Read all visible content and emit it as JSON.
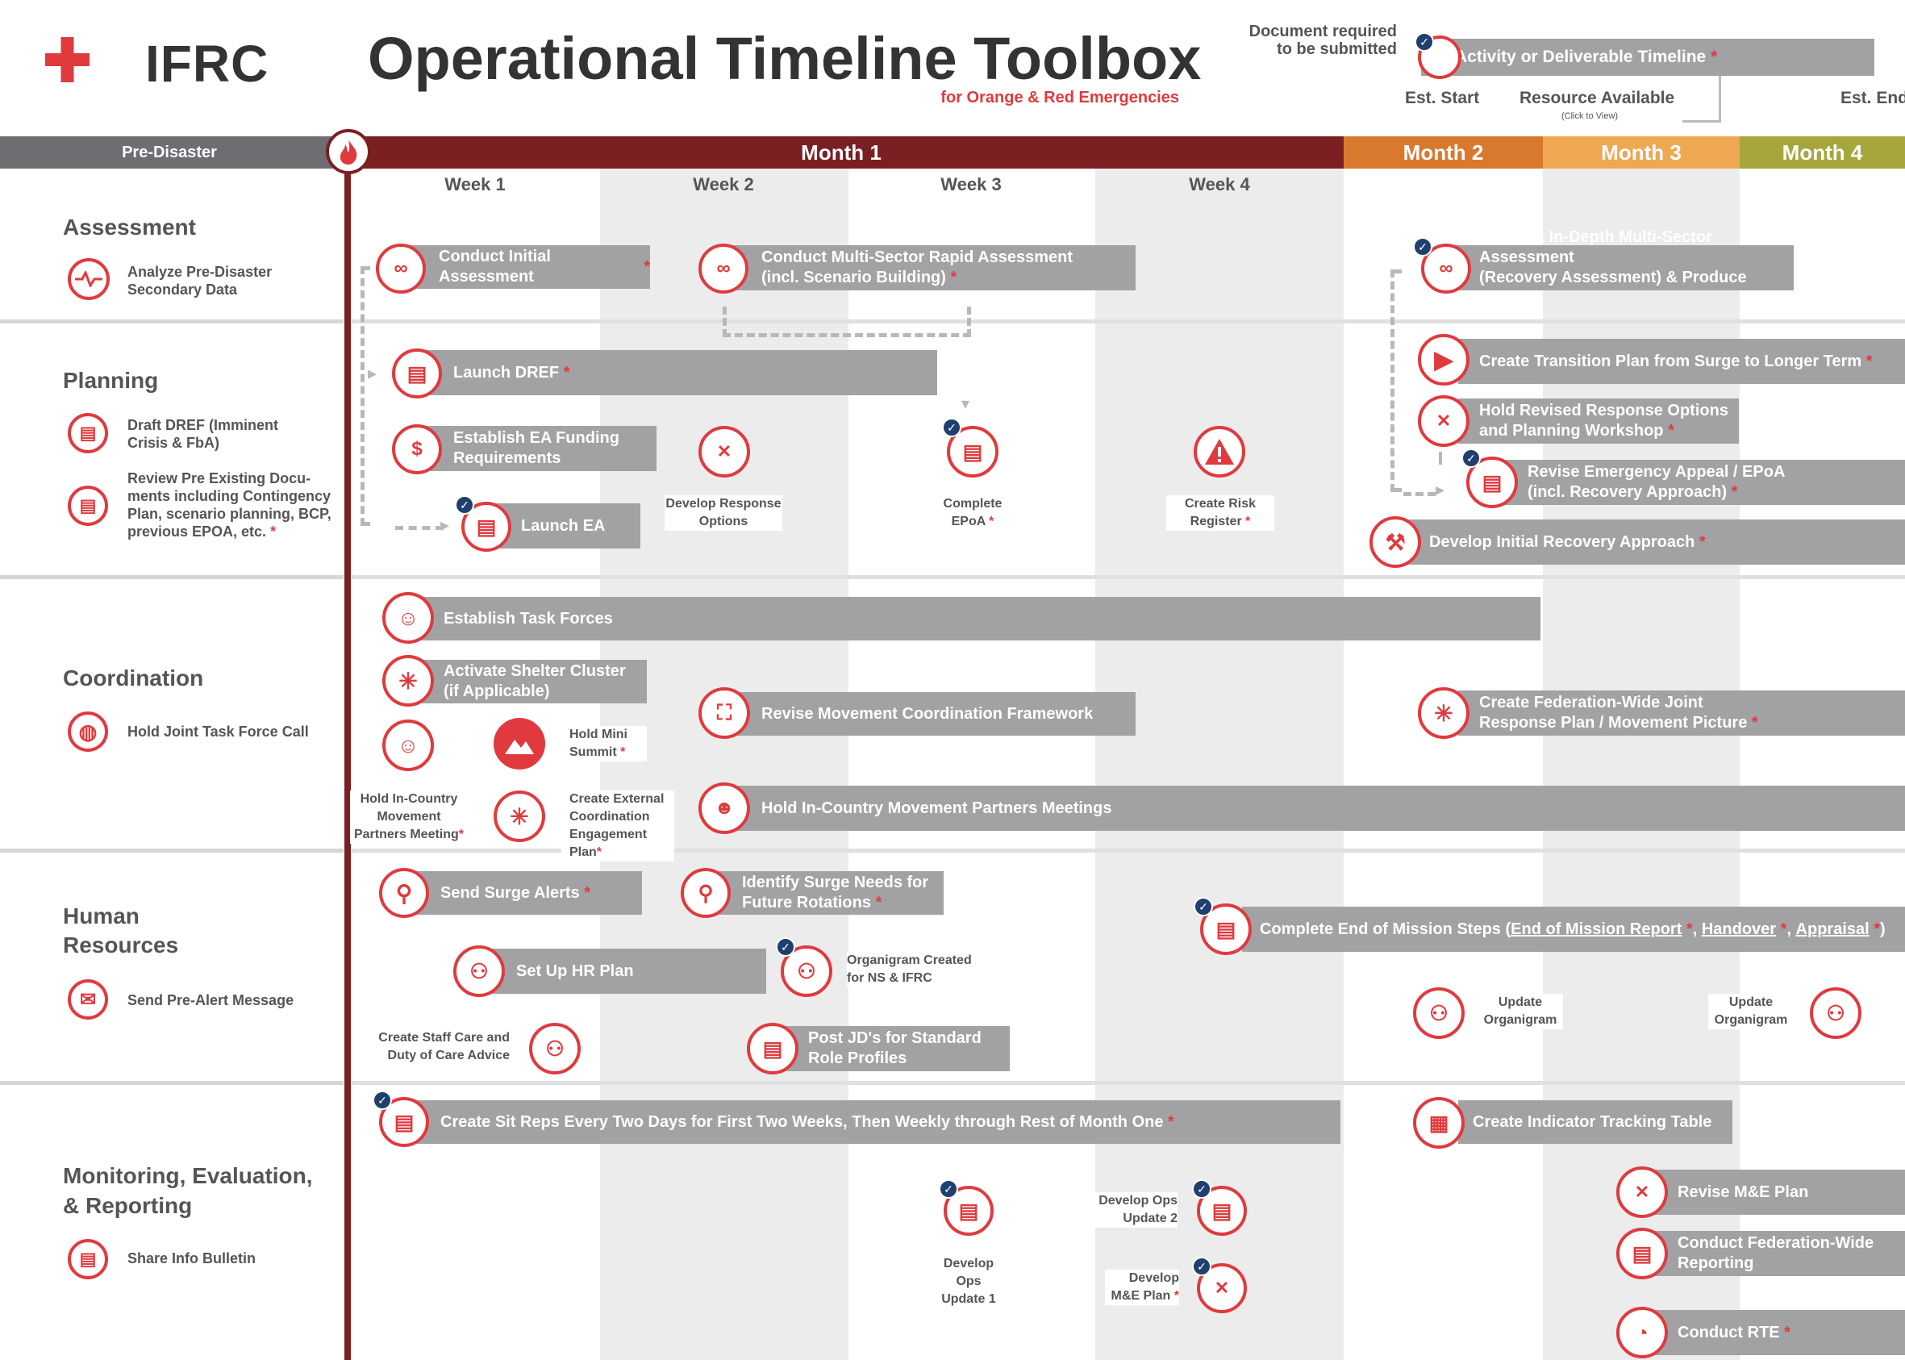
{
  "brand": {
    "logo_text": "IFRC",
    "title": "Operational Timeline Toolbox",
    "subtitle": "for Orange & Red Emergencies"
  },
  "legend": {
    "doc_required": "Document required",
    "doc_required2": "to be submitted",
    "timeline_label": "Activity or Deliverable Timeline",
    "asterisk": "*",
    "est_start": "Est. Start",
    "resource": "Resource Available",
    "click": "(Click to View)",
    "est_end": "Est. End"
  },
  "header": {
    "pre": "Pre-Disaster",
    "m1": "Month 1",
    "m2": "Month 2",
    "m3": "Month 3",
    "m4": "Month 4",
    "w1": "Week 1",
    "w2": "Week 2",
    "w3": "Week 3",
    "w4": "Week 4"
  },
  "colors": {
    "m1": "#7a1f22",
    "m2": "#d9792e",
    "m3": "#eda851",
    "m4": "#a6a63d",
    "pre": "#6d6e71",
    "red": "#e03a3e",
    "bar": "#a2a2a5",
    "check": "#1f3f6e"
  },
  "sections": {
    "assessment": "Assessment",
    "planning": "Planning",
    "coordination": "Coordination",
    "hr1": "Human",
    "hr2": "Resources",
    "me1": "Monitoring, Evaluation,",
    "me2": "& Reporting"
  },
  "pre": {
    "a1": "Analyze Pre-Disaster",
    "a2": "Secondary Data",
    "p1a": "Draft DREF (Imminent",
    "p1b": "Crisis & FbA)",
    "p2a": "Review Pre Existing Docu-",
    "p2b": "ments including Contingency",
    "p2c": "Plan, scenario planning, BCP,",
    "p2d": "previous EPOA, etc.",
    "c1": "Hold Joint Task Force Call",
    "h1": "Send Pre-Alert Message",
    "m1": "Share Info Bulletin"
  },
  "bars": {
    "initial": "Conduct Initial Assessment",
    "multi1": "Conduct Multi-Sector Rapid Assessment",
    "multi2": "(incl. Scenario Building)",
    "indepth1": "Conduct In-Depth Multi-Sector Assessment",
    "indepth2": "(Recovery Assessment) & Produce Report*",
    "dref": "Launch DREF",
    "ea1": "Establish EA Funding",
    "ea2": "Requirements",
    "launch_ea": "Launch EA",
    "transition": "Create Transition Plan from Surge to Longer Term",
    "revised1": "Hold Revised Response Options",
    "revised2": "and Planning Workshop",
    "appeal1": "Revise Emergency Appeal / EPoA",
    "appeal2": "(incl. Recovery Approach)",
    "recovery": "Develop Initial Recovery Approach",
    "task": "Establish Task Forces",
    "shelter1": "Activate Shelter Cluster",
    "shelter2": "(if Applicable)",
    "framework": "Revise Movement Coordination Framework",
    "joint1": "Create Federation-Wide Joint",
    "joint2": "Response Plan / Movement Picture",
    "partners": "Hold In-Country Movement Partners Meetings",
    "surge": "Send Surge Alerts",
    "needs1": "Identify Surge Needs for",
    "needs2": "Future Rotations",
    "eom_pre": "Complete End of Mission Steps (",
    "eom_r": "End of Mission Report",
    "eom_h": "Handover",
    "eom_a": "Appraisal",
    "eom_end": ")",
    "hrplan": "Set Up HR Plan",
    "jd1": "Post JD's for Standard",
    "jd2": "Role Profiles",
    "sitrep": "Create Sit Reps Every Two Days for First Two Weeks, Then Weekly through Rest of Month One",
    "indicator": "Create Indicator Tracking Table",
    "revme": "Revise M&E Plan",
    "fedrep1": "Conduct Federation-Wide",
    "fedrep2": "Reporting",
    "rte": "Conduct RTE"
  },
  "labels": {
    "devresp1": "Develop Response",
    "devresp2": "Options",
    "epoa1": "Complete",
    "epoa2": "EPoA",
    "risk1": "Create Risk",
    "risk2": "Register",
    "mini1": "Hold Mini",
    "mini2": "Summit",
    "incountry1": "Hold In-Country",
    "incountry2": "Movement",
    "incountry3": "Partners Meeting",
    "external1": "Create External",
    "external2": "Coordination",
    "external3": "Engagement Plan",
    "organi1": "Organigram Created",
    "organi2": "for NS & IFRC",
    "staff1": "Create Staff Care and",
    "staff2": "Duty of Care Advice",
    "upd1": "Update",
    "upd2": "Organigram",
    "ops1a": "Develop",
    "ops1b": "Ops",
    "ops1c": "Update 1",
    "ops2a": "Develop Ops",
    "ops2b": "Update 2",
    "mea": "Develop",
    "meb": "M&E Plan"
  }
}
